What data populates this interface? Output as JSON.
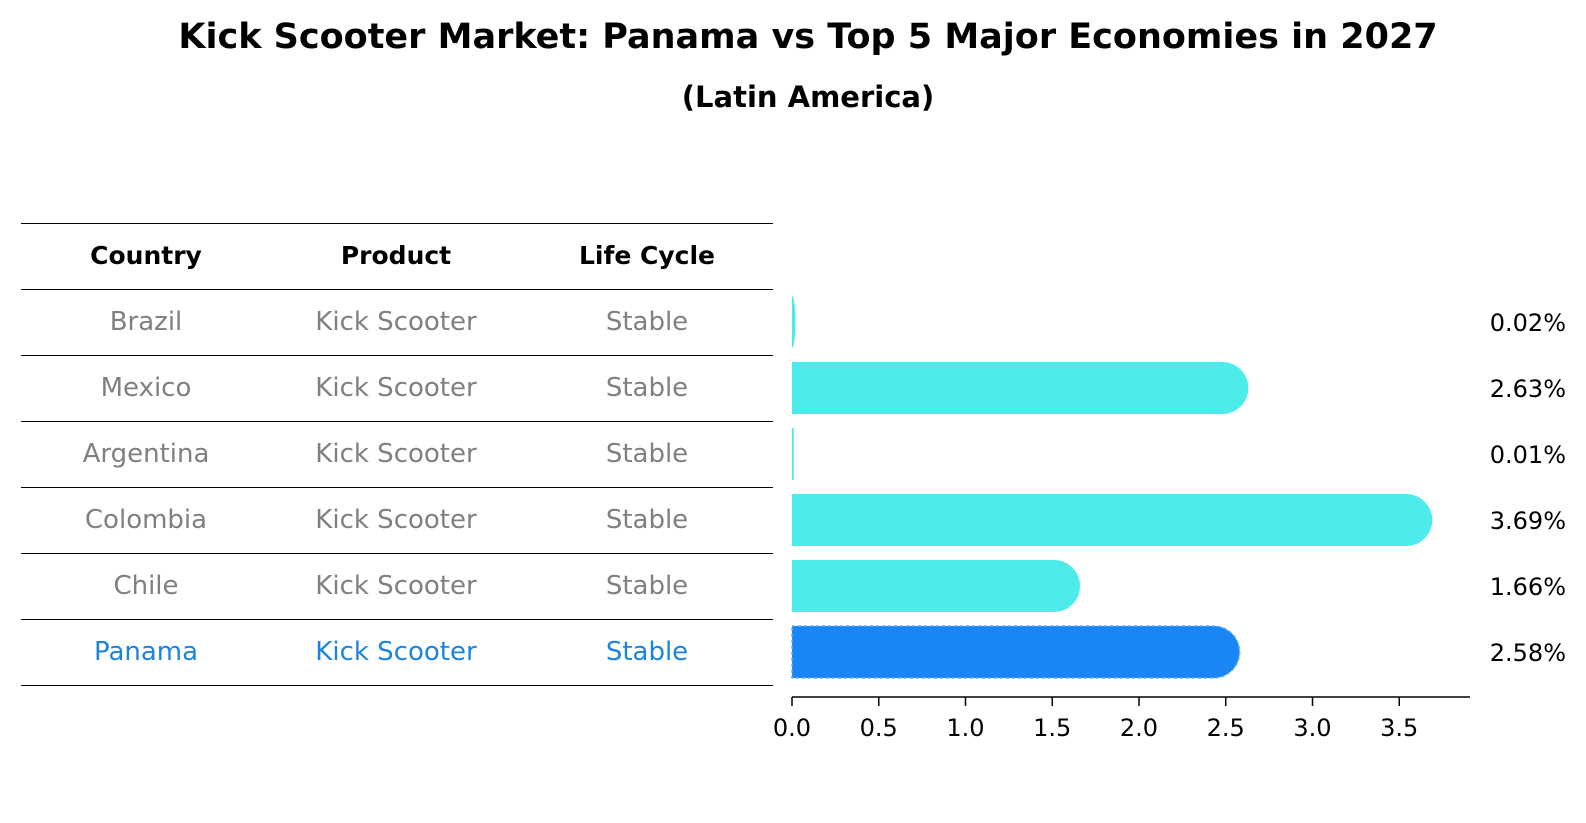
{
  "header": {
    "title": "Kick Scooter Market: Panama vs Top 5 Major Economies in 2027",
    "subtitle": "(Latin America)"
  },
  "table": {
    "columns": [
      "Country",
      "Product",
      "Life Cycle"
    ],
    "rows": [
      [
        "Brazil",
        "Kick Scooter",
        "Stable"
      ],
      [
        "Mexico",
        "Kick Scooter",
        "Stable"
      ],
      [
        "Argentina",
        "Kick Scooter",
        "Stable"
      ],
      [
        "Colombia",
        "Kick Scooter",
        "Stable"
      ],
      [
        "Chile",
        "Kick Scooter",
        "Stable"
      ],
      [
        "Panama",
        "Kick Scooter",
        "Stable"
      ]
    ],
    "highlight_row": 5,
    "text_color": "#808080",
    "highlight_color": "#1a85e0"
  },
  "chart_data": {
    "type": "bar",
    "orientation": "horizontal",
    "categories": [
      "Brazil",
      "Mexico",
      "Argentina",
      "Colombia",
      "Chile",
      "Panama"
    ],
    "values": [
      0.02,
      2.63,
      0.01,
      3.69,
      1.66,
      2.58
    ],
    "value_labels": [
      "0.02%",
      "2.63%",
      "0.01%",
      "3.69%",
      "1.66%",
      "2.58%"
    ],
    "xlim": [
      0,
      3.9
    ],
    "xticks": [
      0.0,
      0.5,
      1.0,
      1.5,
      2.0,
      2.5,
      3.0,
      3.5
    ],
    "xtick_labels": [
      "0.0",
      "0.5",
      "1.0",
      "1.5",
      "2.0",
      "2.5",
      "3.0",
      "3.5"
    ],
    "bar_color": "#4deceb",
    "highlight_color": "#1a85f5",
    "highlight_index": 5,
    "grid": false
  }
}
